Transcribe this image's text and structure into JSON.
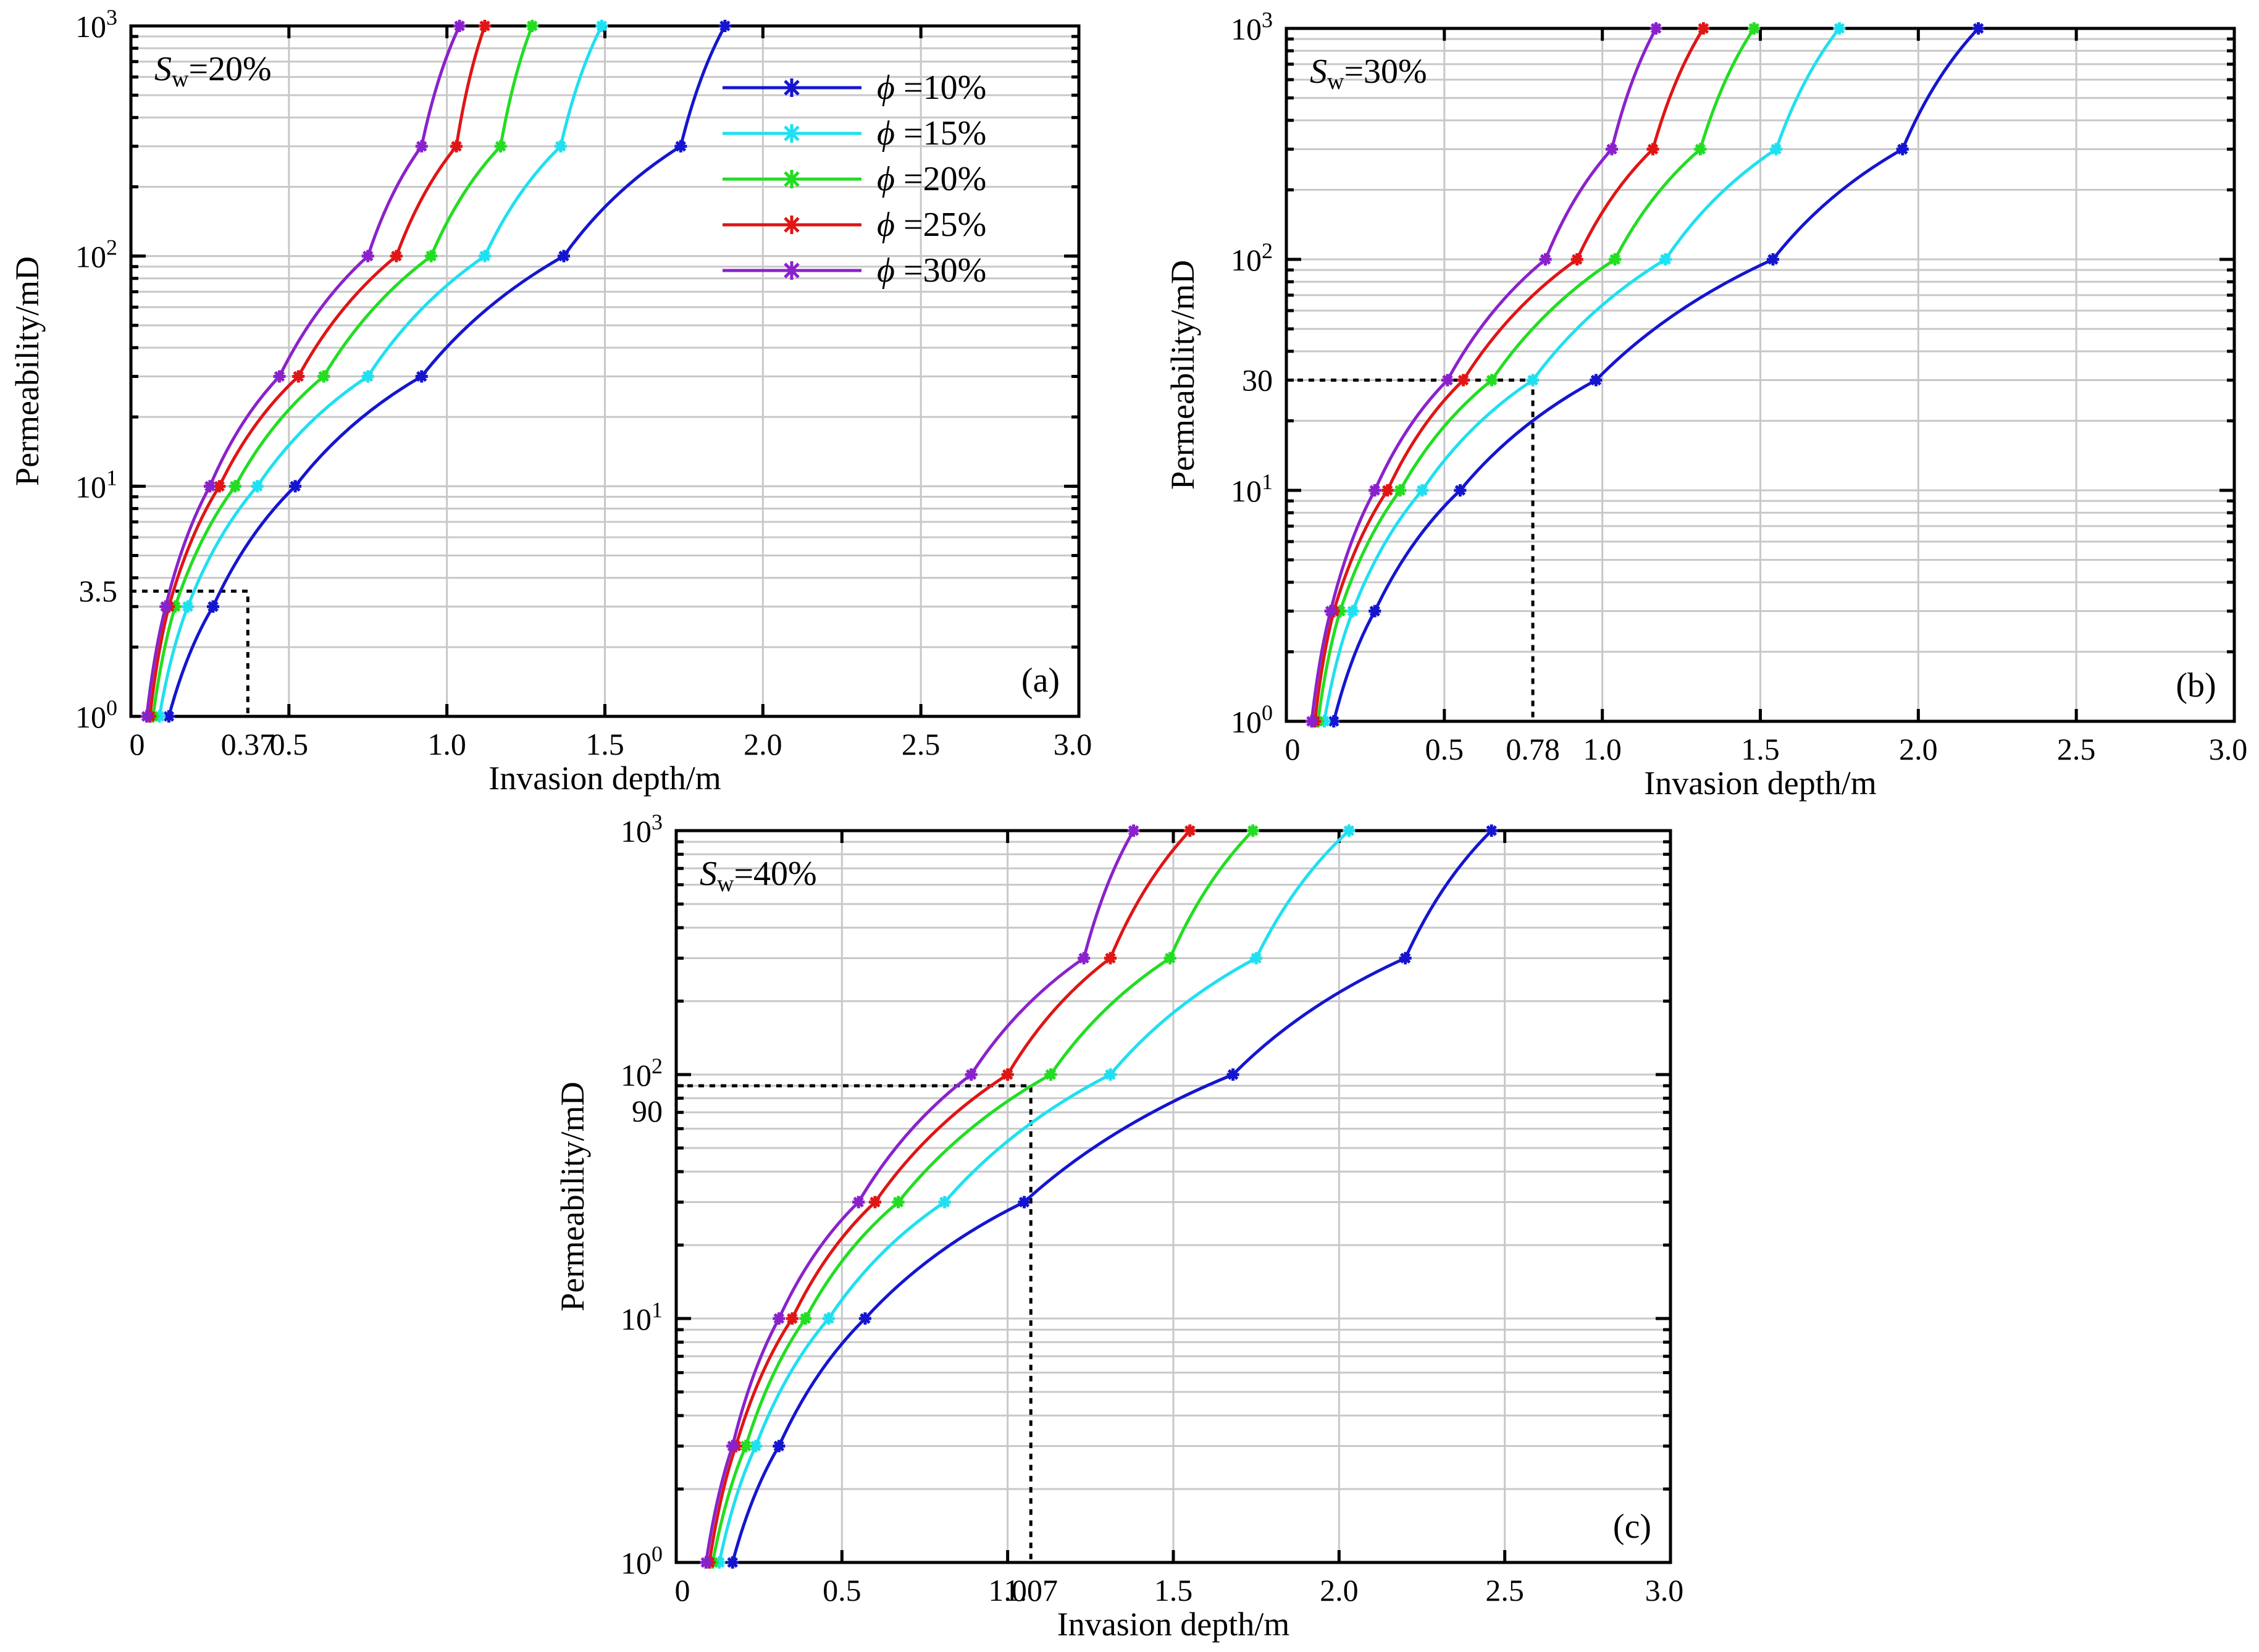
{
  "colors": {
    "phi_10": "#1515d0",
    "phi_15": "#1ee0f0",
    "phi_20": "#22dd22",
    "phi_25": "#e01515",
    "phi_30": "#8a22cc",
    "grid": "#c8c8c8",
    "reference": "#888888"
  },
  "chart_data": [
    {
      "type": "line",
      "panel_label": "(a)",
      "annotation_prefix": "S",
      "annotation_sub": "w",
      "annotation_suffix": "=20%",
      "xlabel": "Invasion depth/m",
      "ylabel": "Permeability/mD",
      "xlim": [
        0,
        3.0
      ],
      "ylim": [
        1,
        1000
      ],
      "yscale": "log",
      "grid": true,
      "x_ticks": [
        "0",
        "0.5",
        "1.0",
        "1.5",
        "2.0",
        "2.5",
        "3.0"
      ],
      "y_ticks": [
        {
          "base": "10",
          "exp": "0"
        },
        {
          "base": "10",
          "exp": "1"
        },
        {
          "base": "10",
          "exp": "2"
        },
        {
          "base": "10",
          "exp": "3"
        }
      ],
      "legend": {
        "position": "top-right",
        "symbol": "ϕ",
        "entries": [
          "=10%",
          "=15%",
          "=20%",
          "=25%",
          "=30%"
        ]
      },
      "reference": {
        "x": 0.37,
        "y": 3.5,
        "x_label": "0.37",
        "y_label": "3.5"
      },
      "k": [
        1,
        3,
        10,
        30,
        100,
        300,
        1000
      ],
      "series": [
        {
          "name": "ϕ=10%",
          "x": [
            0.12,
            0.26,
            0.52,
            0.92,
            1.37,
            1.74,
            1.88
          ]
        },
        {
          "name": "ϕ=15%",
          "x": [
            0.09,
            0.18,
            0.4,
            0.75,
            1.12,
            1.36,
            1.49
          ]
        },
        {
          "name": "ϕ=20%",
          "x": [
            0.07,
            0.14,
            0.33,
            0.61,
            0.95,
            1.17,
            1.27
          ]
        },
        {
          "name": "ϕ=25%",
          "x": [
            0.06,
            0.12,
            0.28,
            0.53,
            0.84,
            1.03,
            1.12
          ]
        },
        {
          "name": "ϕ=30%",
          "x": [
            0.05,
            0.11,
            0.25,
            0.47,
            0.75,
            0.92,
            1.04
          ]
        }
      ]
    },
    {
      "type": "line",
      "panel_label": "(b)",
      "annotation_prefix": "S",
      "annotation_sub": "w",
      "annotation_suffix": "=30%",
      "xlabel": "Invasion depth/m",
      "ylabel": "Permeability/mD",
      "xlim": [
        0,
        3.0
      ],
      "ylim": [
        1,
        1000
      ],
      "yscale": "log",
      "grid": true,
      "x_ticks": [
        "0",
        "0.5",
        "1.0",
        "1.5",
        "2.0",
        "2.5",
        "3.0"
      ],
      "y_ticks": [
        {
          "base": "10",
          "exp": "0"
        },
        {
          "base": "10",
          "exp": "1"
        },
        {
          "base": "10",
          "exp": "2"
        },
        {
          "base": "10",
          "exp": "3"
        }
      ],
      "reference": {
        "x": 0.78,
        "y": 30,
        "x_label": "0.78",
        "y_label": "30"
      },
      "k": [
        1,
        3,
        10,
        30,
        100,
        300,
        1000
      ],
      "series": [
        {
          "name": "ϕ=10%",
          "x": [
            0.15,
            0.28,
            0.55,
            0.98,
            1.54,
            1.95,
            2.19
          ]
        },
        {
          "name": "ϕ=15%",
          "x": [
            0.12,
            0.21,
            0.43,
            0.78,
            1.2,
            1.55,
            1.75
          ]
        },
        {
          "name": "ϕ=20%",
          "x": [
            0.1,
            0.17,
            0.36,
            0.65,
            1.04,
            1.31,
            1.48
          ]
        },
        {
          "name": "ϕ=25%",
          "x": [
            0.09,
            0.15,
            0.32,
            0.56,
            0.92,
            1.16,
            1.32
          ]
        },
        {
          "name": "ϕ=30%",
          "x": [
            0.08,
            0.14,
            0.28,
            0.51,
            0.82,
            1.03,
            1.17
          ]
        }
      ]
    },
    {
      "type": "line",
      "panel_label": "(c)",
      "annotation_prefix": "S",
      "annotation_sub": "w",
      "annotation_suffix": "=40%",
      "xlabel": "Invasion depth/m",
      "ylabel": "Permeability/mD",
      "xlim": [
        0,
        3.0
      ],
      "ylim": [
        1,
        1000
      ],
      "yscale": "log",
      "grid": true,
      "x_ticks": [
        "0",
        "0.5",
        "1.0",
        "1.5",
        "2.0",
        "2.5",
        "3.0"
      ],
      "y_ticks": [
        {
          "base": "10",
          "exp": "0"
        },
        {
          "base": "10",
          "exp": "1"
        },
        {
          "base": "10",
          "exp": "2"
        },
        {
          "base": "10",
          "exp": "3"
        }
      ],
      "reference": {
        "x": 1.07,
        "y": 90,
        "x_label": "1.07",
        "y_label": "90"
      },
      "k": [
        1,
        3,
        10,
        30,
        100,
        300,
        1000
      ],
      "series": [
        {
          "name": "ϕ=10%",
          "x": [
            0.17,
            0.31,
            0.57,
            1.05,
            1.68,
            2.2,
            2.46
          ]
        },
        {
          "name": "ϕ=15%",
          "x": [
            0.13,
            0.24,
            0.46,
            0.81,
            1.31,
            1.75,
            2.03
          ]
        },
        {
          "name": "ϕ=20%",
          "x": [
            0.11,
            0.21,
            0.39,
            0.67,
            1.13,
            1.49,
            1.74
          ]
        },
        {
          "name": "ϕ=25%",
          "x": [
            0.1,
            0.18,
            0.35,
            0.6,
            1.0,
            1.31,
            1.55
          ]
        },
        {
          "name": "ϕ=30%",
          "x": [
            0.09,
            0.17,
            0.31,
            0.55,
            0.89,
            1.23,
            1.38
          ]
        }
      ]
    }
  ]
}
